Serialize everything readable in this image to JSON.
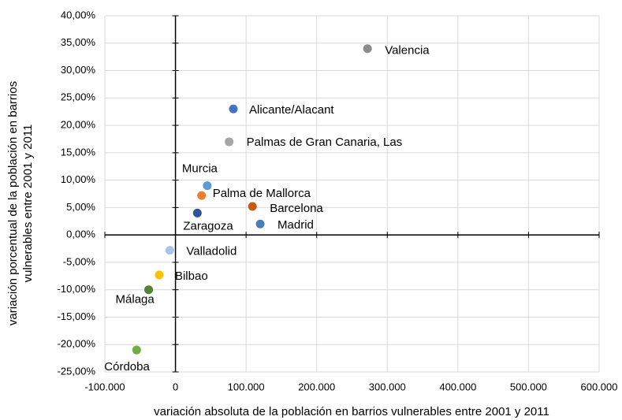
{
  "chart_data": {
    "type": "scatter",
    "x_label": "variación absoluta de la población en barrios vulnerables entre 2001 y 2011",
    "y_label": [
      "variación porcentual de la población en barrios",
      "vulnerables entre 2001 y 2011"
    ],
    "xlim": [
      -100000,
      600000
    ],
    "xticks": [
      {
        "value": -100000,
        "label": "-100.000"
      },
      0,
      {
        "value": 100000,
        "label": "100.000"
      },
      {
        "value": 200000,
        "label": "200.000"
      },
      {
        "value": 300000,
        "label": "300.000"
      },
      {
        "value": 400000,
        "label": "400.000"
      },
      {
        "value": 500000,
        "label": "500.000"
      },
      {
        "value": 600000,
        "label": "600.000"
      }
    ],
    "ylim": [
      -25,
      40
    ],
    "yticks": [
      {
        "value": -25,
        "label": "-25,00%"
      },
      {
        "value": -20,
        "label": "-20,00%"
      },
      {
        "value": -15,
        "label": "-15,00%"
      },
      {
        "value": -10,
        "label": "-10,00%"
      },
      {
        "value": -5,
        "label": "-5,00%"
      },
      {
        "value": 0,
        "label": "0,00%"
      },
      {
        "value": 5,
        "label": "5,00%"
      },
      {
        "value": 10,
        "label": "10,00%"
      },
      {
        "value": 15,
        "label": "15,00%"
      },
      {
        "value": 20,
        "label": "20,00%"
      },
      {
        "value": 25,
        "label": "25,00%"
      },
      {
        "value": 30,
        "label": "30,00%"
      },
      {
        "value": 35,
        "label": "35,00%"
      },
      {
        "value": 40,
        "label": "40,00%"
      }
    ],
    "grid": true,
    "points": [
      {
        "name": "Valencia",
        "x": 272000,
        "y": 34,
        "color": "#8c8c8c"
      },
      {
        "name": "Alicante/Alacant",
        "x": 82000,
        "y": 23,
        "color": "#4472c4"
      },
      {
        "name": "Palmas de Gran Canaria, Las",
        "x": 76000,
        "y": 17,
        "color": "#a5a5a5"
      },
      {
        "name": "Murcia",
        "x": 45000,
        "y": 9,
        "color": "#5b9bd5"
      },
      {
        "name": "Palma de Mallorca",
        "x": 37000,
        "y": 7.2,
        "color": "#ed7d31"
      },
      {
        "name": "Barcelona",
        "x": 109000,
        "y": 5.2,
        "color": "#c55a11"
      },
      {
        "name": "Zaragoza",
        "x": 31000,
        "y": 4,
        "color": "#2f5597"
      },
      {
        "name": "Madrid",
        "x": 120000,
        "y": 2,
        "color": "#4a7db5"
      },
      {
        "name": "Valladolid",
        "x": -8000,
        "y": -2.8,
        "color": "#a9c4e6"
      },
      {
        "name": "Bilbao",
        "x": -23000,
        "y": -7.3,
        "color": "#ffc000"
      },
      {
        "name": "Málaga",
        "x": -38000,
        "y": -10,
        "color": "#548235"
      },
      {
        "name": "Córdoba",
        "x": -55000,
        "y": -21,
        "color": "#70ad47"
      }
    ]
  }
}
